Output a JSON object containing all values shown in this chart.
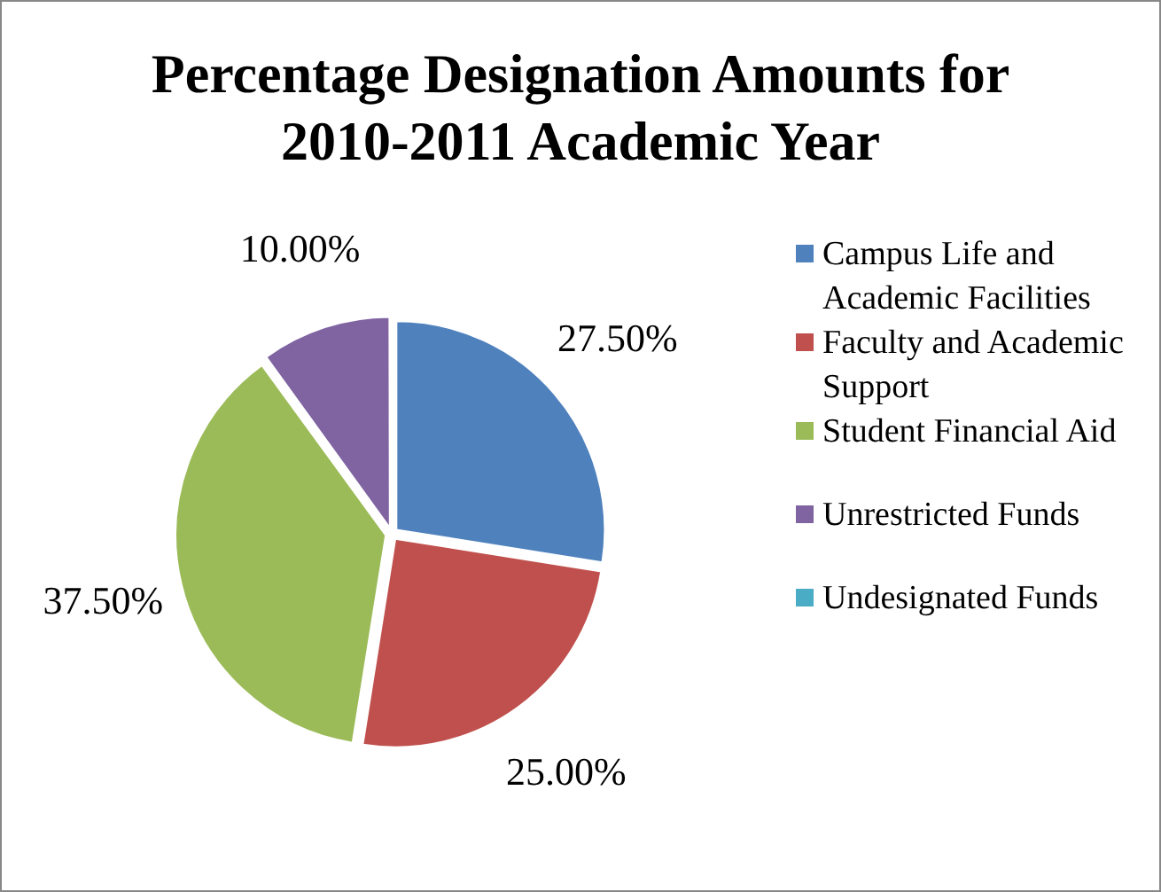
{
  "chart_data": {
    "type": "pie",
    "title": "Percentage Designation Amounts for 2010-2011 Academic Year",
    "categories": [
      "Campus Life and Academic Facilities",
      "Faculty and Academic Support",
      "Student Financial Aid",
      "Unrestricted Funds",
      "Undesignated Funds"
    ],
    "values": [
      27.5,
      25,
      37.5,
      10,
      0
    ],
    "colors": [
      "#4f81bd",
      "#c0504d",
      "#9bbb59",
      "#8064a2",
      "#4bacc6"
    ],
    "value_labels": [
      "27.50%",
      "25.00%",
      "37.50%",
      "10.00%",
      null
    ],
    "legend": "right"
  }
}
